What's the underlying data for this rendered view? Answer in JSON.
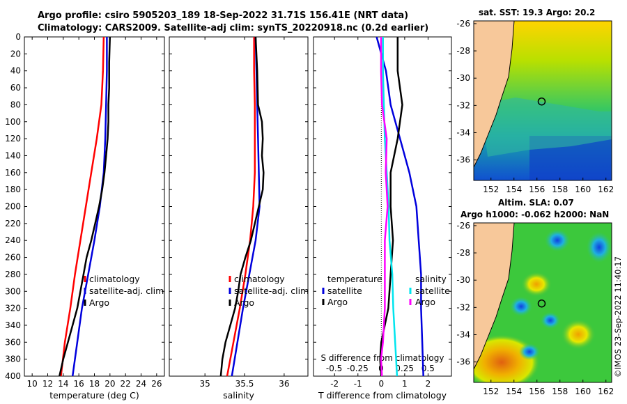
{
  "header": {
    "line1": "Argo profile: csiro 5905203_189 18-Sep-2022 31.71S 156.41E (NRT data)",
    "line2": "Climatology: CARS2009. Satellite-adj clim: synTS_20220918.nc (0.2d earlier)"
  },
  "colors": {
    "climatology": "#ff0000",
    "satellite": "#0000dd",
    "argo": "#000000",
    "salinity_clim": "#ff00ff",
    "salinity_sat": "#00e5ee",
    "land": "#f7c89a"
  },
  "chart_data": [
    {
      "type": "line",
      "panel": "temperature",
      "xlabel": "temperature (deg C)",
      "ylabel": "",
      "xlim": [
        9,
        27
      ],
      "ylim": [
        400,
        0
      ],
      "xticks": [
        "10",
        "12",
        "14",
        "16",
        "18",
        "20",
        "22",
        "24",
        "26"
      ],
      "yticks": [
        "0",
        "20",
        "40",
        "60",
        "80",
        "100",
        "120",
        "140",
        "160",
        "180",
        "200",
        "220",
        "240",
        "260",
        "280",
        "300",
        "320",
        "340",
        "360",
        "380",
        "400"
      ],
      "legend": [
        "climatology",
        "satellite-adj. clim",
        "Argo"
      ],
      "series": [
        {
          "name": "climatology",
          "color": "#ff0000",
          "depth": [
            0,
            40,
            80,
            120,
            160,
            200,
            240,
            280,
            320,
            360,
            400
          ],
          "values": [
            19.2,
            19.1,
            18.9,
            18.3,
            17.6,
            16.9,
            16.2,
            15.5,
            14.9,
            14.2,
            13.7
          ]
        },
        {
          "name": "satellite-adj. clim",
          "color": "#0000dd",
          "depth": [
            0,
            40,
            80,
            120,
            160,
            200,
            240,
            280,
            320,
            360,
            400
          ],
          "values": [
            19.6,
            19.6,
            19.5,
            19.4,
            19.2,
            18.7,
            18.0,
            17.2,
            16.4,
            15.8,
            15.2
          ]
        },
        {
          "name": "Argo",
          "color": "#000000",
          "depth": [
            0,
            30,
            60,
            80,
            100,
            120,
            140,
            160,
            180,
            200,
            220,
            240,
            260,
            280,
            300,
            320,
            340,
            360,
            380,
            400
          ],
          "values": [
            20.0,
            19.9,
            19.9,
            19.8,
            19.8,
            19.7,
            19.5,
            19.3,
            19.0,
            18.6,
            18.1,
            17.6,
            17.0,
            16.6,
            16.2,
            15.8,
            15.2,
            14.6,
            14.0,
            13.5
          ]
        }
      ]
    },
    {
      "type": "line",
      "panel": "salinity",
      "xlabel": "salinity",
      "ylabel": "",
      "xlim": [
        34.55,
        36.3
      ],
      "ylim": [
        400,
        0
      ],
      "xticks": [
        "35",
        "35.5",
        "36"
      ],
      "legend": [
        "climatology",
        "satellite-adj. clim",
        "Argo"
      ],
      "series": [
        {
          "name": "climatology",
          "color": "#ff0000",
          "depth": [
            0,
            40,
            80,
            120,
            160,
            200,
            240,
            280,
            320,
            360,
            400
          ],
          "values": [
            35.62,
            35.62,
            35.63,
            35.63,
            35.63,
            35.61,
            35.57,
            35.51,
            35.44,
            35.36,
            35.28
          ]
        },
        {
          "name": "satellite-adj. clim",
          "color": "#0000dd",
          "depth": [
            0,
            40,
            80,
            120,
            160,
            200,
            240,
            280,
            320,
            360,
            400
          ],
          "values": [
            35.64,
            35.65,
            35.66,
            35.67,
            35.68,
            35.69,
            35.64,
            35.56,
            35.48,
            35.41,
            35.34
          ]
        },
        {
          "name": "Argo",
          "color": "#000000",
          "depth": [
            0,
            40,
            80,
            100,
            120,
            140,
            160,
            180,
            200,
            220,
            240,
            260,
            280,
            300,
            320,
            340,
            360,
            380,
            400
          ],
          "values": [
            35.64,
            35.66,
            35.67,
            35.72,
            35.73,
            35.72,
            35.74,
            35.73,
            35.68,
            35.63,
            35.58,
            35.51,
            35.45,
            35.42,
            35.38,
            35.32,
            35.26,
            35.22,
            35.2
          ]
        }
      ]
    },
    {
      "type": "line",
      "panel": "difference",
      "xlabel": "T difference from climatology",
      "secondary_xlabel": "S difference from climatology",
      "xlim": [
        -2.9,
        3.0
      ],
      "secondary_xlim": [
        -0.72,
        0.75
      ],
      "ylim": [
        400,
        0
      ],
      "xticks": [
        "-2",
        "-1",
        "0",
        "1",
        "2"
      ],
      "secondary_xticks": [
        "-0.5",
        "-0.25",
        "0",
        "0.25",
        "0.5"
      ],
      "legend_temperature": [
        "temperature",
        "satellite",
        "Argo"
      ],
      "legend_salinity": [
        "salinity",
        "satellite",
        "Argo"
      ],
      "series": [
        {
          "name": "temperature satellite",
          "color": "#0000dd",
          "depth": [
            0,
            40,
            80,
            120,
            160,
            200,
            240,
            280,
            320,
            360,
            400
          ],
          "values": [
            -0.2,
            0.2,
            0.4,
            0.8,
            1.2,
            1.5,
            1.6,
            1.7,
            1.7,
            1.75,
            1.8
          ]
        },
        {
          "name": "temperature Argo",
          "color": "#000000",
          "depth": [
            0,
            40,
            80,
            120,
            160,
            200,
            240,
            280,
            320,
            360,
            380,
            400
          ],
          "values": [
            0.7,
            0.7,
            0.9,
            0.7,
            0.4,
            0.4,
            0.5,
            0.4,
            0.3,
            0.0,
            -0.05,
            0.0
          ]
        },
        {
          "name": "salinity satellite",
          "color": "#00e5ee",
          "depth": [
            0,
            40,
            80,
            120,
            160,
            200,
            240,
            280,
            320,
            360,
            400
          ],
          "values": [
            0.02,
            0.02,
            0.03,
            0.04,
            0.06,
            0.08,
            0.09,
            0.12,
            0.13,
            0.15,
            0.17
          ]
        },
        {
          "name": "salinity Argo",
          "color": "#ff00ff",
          "depth": [
            0,
            40,
            80,
            120,
            160,
            200,
            240,
            280,
            320,
            360,
            380,
            400
          ],
          "values": [
            0.0,
            0.0,
            0.01,
            0.06,
            0.05,
            0.07,
            0.04,
            0.04,
            0.04,
            0.02,
            0.0,
            0.01
          ]
        }
      ]
    },
    {
      "type": "heatmap",
      "panel": "sst_map",
      "title": "sat. SST: 19.3 Argo: 20.2",
      "xticks": [
        "152",
        "154",
        "156",
        "158",
        "160",
        "162"
      ],
      "yticks": [
        "-26",
        "-28",
        "-30",
        "-32",
        "-34",
        "-36"
      ],
      "xlim": [
        150.5,
        162.5
      ],
      "ylim": [
        -37.5,
        -25.8
      ],
      "float_position": [
        156.41,
        -31.71
      ]
    },
    {
      "type": "heatmap",
      "panel": "sla_map",
      "title_line1": "Altim. SLA: 0.07",
      "title_line2": "Argo h1000: -0.062 h2000: NaN",
      "xticks": [
        "152",
        "154",
        "156",
        "158",
        "160",
        "162"
      ],
      "yticks": [
        "-26",
        "-28",
        "-30",
        "-32",
        "-34",
        "-36"
      ],
      "xlim": [
        150.5,
        162.5
      ],
      "ylim": [
        -37.5,
        -25.8
      ],
      "float_position": [
        156.41,
        -31.71
      ]
    }
  ],
  "footer": {
    "credit": "©IMOS 23-Sep-2022 11:40:17"
  }
}
